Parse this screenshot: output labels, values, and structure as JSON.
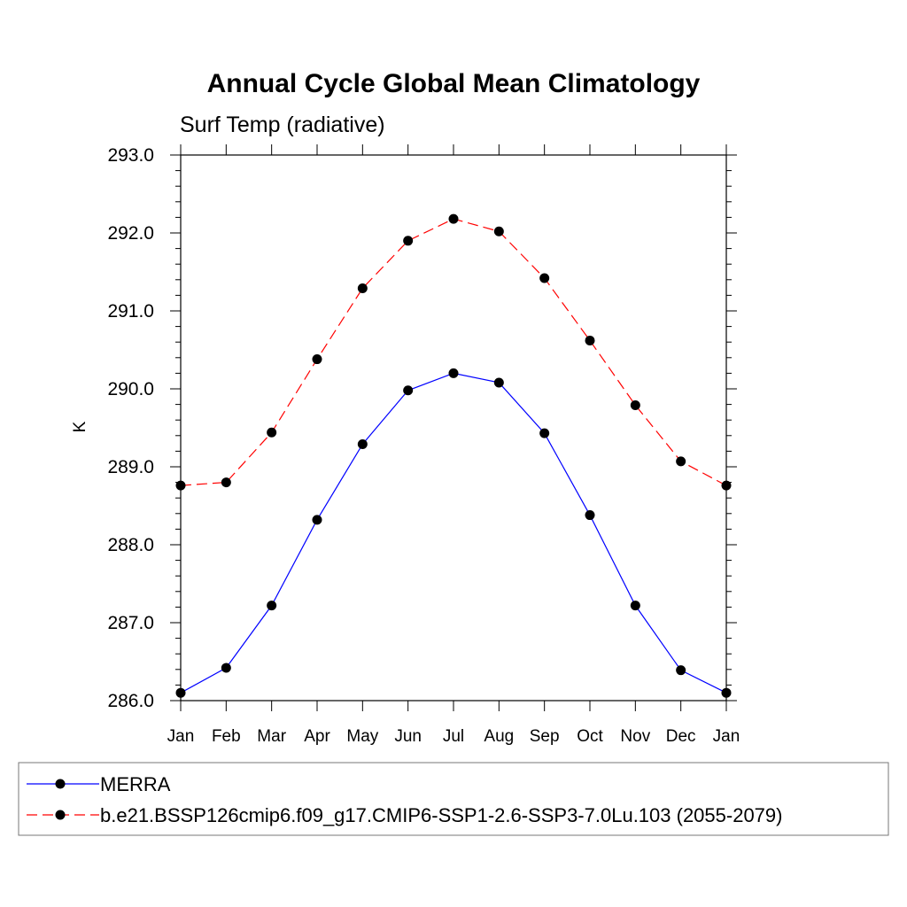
{
  "chart_data": {
    "type": "line",
    "title": "Annual Cycle Global Mean Climatology",
    "subtitle": "Surf Temp (radiative)",
    "xlabel": "",
    "ylabel": "K",
    "categories": [
      "Jan",
      "Feb",
      "Mar",
      "Apr",
      "May",
      "Jun",
      "Jul",
      "Aug",
      "Sep",
      "Oct",
      "Nov",
      "Dec",
      "Jan"
    ],
    "ylim": [
      286.0,
      293.0
    ],
    "yticks": [
      "286.0",
      "287.0",
      "288.0",
      "289.0",
      "290.0",
      "291.0",
      "292.0",
      "293.0"
    ],
    "series": [
      {
        "name": "MERRA",
        "color": "#0000ff",
        "dash": "solid",
        "values": [
          286.1,
          286.42,
          287.22,
          288.32,
          289.29,
          289.98,
          290.2,
          290.08,
          289.43,
          288.38,
          287.22,
          286.39,
          286.1
        ]
      },
      {
        "name": "b.e21.BSSP126cmip6.f09_g17.CMIP6-SSP1-2.6-SSP3-7.0Lu.103 (2055-2079)",
        "color": "#ff0000",
        "dash": "dashed",
        "values": [
          288.76,
          288.8,
          289.44,
          290.38,
          291.29,
          291.9,
          292.18,
          292.02,
          291.42,
          290.62,
          289.79,
          289.07,
          288.76
        ]
      }
    ],
    "grid": false,
    "legend": "bottom"
  }
}
